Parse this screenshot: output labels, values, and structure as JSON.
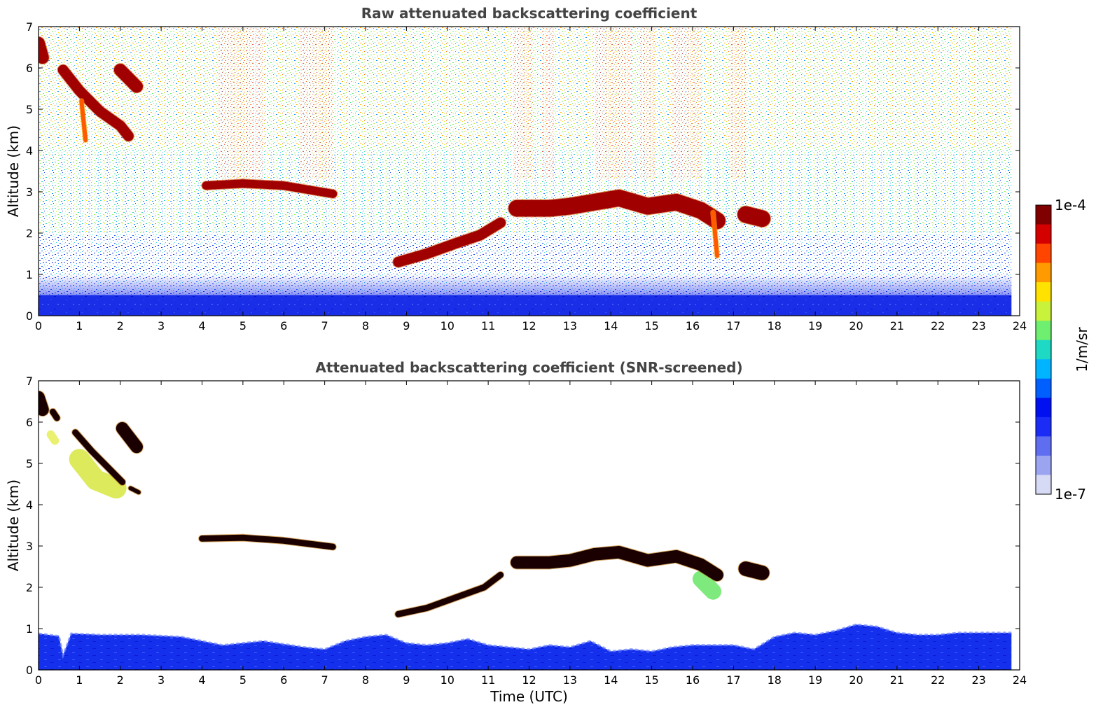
{
  "chart_data": [
    {
      "type": "heatmap",
      "title": "Raw attenuated backscattering coefficient",
      "xlabel": "",
      "ylabel": "Altitude (km)",
      "xlim": [
        0,
        24
      ],
      "ylim": [
        0,
        7
      ],
      "xticks": [
        "0",
        "1",
        "2",
        "3",
        "4",
        "5",
        "6",
        "7",
        "8",
        "9",
        "10",
        "11",
        "12",
        "13",
        "14",
        "15",
        "16",
        "17",
        "18",
        "19",
        "20",
        "21",
        "22",
        "23",
        "24"
      ],
      "yticks": [
        "0",
        "1",
        "2",
        "3",
        "4",
        "5",
        "6",
        "7"
      ],
      "data_end_time": 23.8,
      "grid": false,
      "layers": [
        {
          "name": "boundary layer (dense blue)",
          "from_km": 0,
          "to_km": 0.5
        },
        {
          "name": "lower noise transition",
          "from_km": 0.5,
          "to_km": 2.0
        },
        {
          "name": "mid noise (cyan-green)",
          "from_km": 2.0,
          "to_km": 4.0
        },
        {
          "name": "upper noise (green-yellow)",
          "from_km": 4.0,
          "to_km": 7.0
        }
      ],
      "strong_noise_bands_hours": [
        [
          4.4,
          5.5
        ],
        [
          6.4,
          7.2
        ],
        [
          11.6,
          12.1
        ],
        [
          12.3,
          12.6
        ],
        [
          13.6,
          14.5
        ],
        [
          14.7,
          15.1
        ],
        [
          15.5,
          16.2
        ],
        [
          16.9,
          17.3
        ]
      ],
      "cloud_features": [
        {
          "points": [
            [
              0.6,
              5.95
            ],
            [
              1.0,
              5.45
            ],
            [
              1.5,
              4.95
            ],
            [
              2.0,
              4.6
            ],
            [
              2.2,
              4.35
            ]
          ],
          "thickness_km": 0.25
        },
        {
          "points": [
            [
              0.0,
              6.6
            ],
            [
              0.1,
              6.25
            ]
          ],
          "thickness_km": 0.3
        },
        {
          "points": [
            [
              2.0,
              5.95
            ],
            [
              2.4,
              5.55
            ]
          ],
          "thickness_km": 0.3
        },
        {
          "points": [
            [
              4.1,
              3.15
            ],
            [
              5.0,
              3.2
            ],
            [
              6.0,
              3.15
            ],
            [
              7.2,
              2.95
            ]
          ],
          "thickness_km": 0.2
        },
        {
          "points": [
            [
              8.8,
              1.3
            ],
            [
              9.5,
              1.5
            ],
            [
              10.2,
              1.75
            ],
            [
              10.8,
              1.95
            ],
            [
              11.3,
              2.25
            ]
          ],
          "thickness_km": 0.25
        },
        {
          "points": [
            [
              11.7,
              2.6
            ],
            [
              12.5,
              2.6
            ],
            [
              13.0,
              2.65
            ],
            [
              13.6,
              2.75
            ],
            [
              14.2,
              2.85
            ],
            [
              14.9,
              2.65
            ],
            [
              15.6,
              2.75
            ],
            [
              16.2,
              2.55
            ],
            [
              16.6,
              2.3
            ]
          ],
          "thickness_km": 0.4
        },
        {
          "points": [
            [
              17.3,
              2.45
            ],
            [
              17.7,
              2.35
            ]
          ],
          "thickness_km": 0.4
        },
        {
          "points": [
            [
              1.05,
              5.2
            ],
            [
              1.15,
              4.25
            ]
          ],
          "thickness_km": 0.1
        },
        {
          "points": [
            [
              16.5,
              2.5
            ],
            [
              16.6,
              1.45
            ]
          ],
          "thickness_km": 0.1
        }
      ]
    },
    {
      "type": "heatmap",
      "title": "Attenuated backscattering coefficient (SNR-screened)",
      "xlabel": "Time (UTC)",
      "ylabel": "Altitude (km)",
      "xlim": [
        0,
        24
      ],
      "ylim": [
        0,
        7
      ],
      "xticks": [
        "0",
        "1",
        "2",
        "3",
        "4",
        "5",
        "6",
        "7",
        "8",
        "9",
        "10",
        "11",
        "12",
        "13",
        "14",
        "15",
        "16",
        "17",
        "18",
        "19",
        "20",
        "21",
        "22",
        "23",
        "24"
      ],
      "yticks": [
        "0",
        "1",
        "2",
        "3",
        "4",
        "5",
        "6",
        "7"
      ],
      "data_end_time": 23.8,
      "grid": false,
      "boundary_layer_top_km": [
        [
          0.0,
          0.88
        ],
        [
          0.5,
          0.82
        ],
        [
          0.6,
          0.35
        ],
        [
          0.8,
          0.88
        ],
        [
          1.5,
          0.85
        ],
        [
          2.5,
          0.85
        ],
        [
          3.5,
          0.8
        ],
        [
          4.5,
          0.6
        ],
        [
          5.5,
          0.7
        ],
        [
          6.5,
          0.55
        ],
        [
          7.0,
          0.5
        ],
        [
          7.5,
          0.7
        ],
        [
          8.0,
          0.8
        ],
        [
          8.5,
          0.85
        ],
        [
          9.0,
          0.65
        ],
        [
          9.5,
          0.6
        ],
        [
          10.0,
          0.65
        ],
        [
          10.5,
          0.75
        ],
        [
          11.0,
          0.6
        ],
        [
          11.5,
          0.55
        ],
        [
          12.0,
          0.5
        ],
        [
          12.5,
          0.6
        ],
        [
          13.0,
          0.55
        ],
        [
          13.5,
          0.7
        ],
        [
          14.0,
          0.45
        ],
        [
          14.5,
          0.5
        ],
        [
          15.0,
          0.45
        ],
        [
          15.5,
          0.55
        ],
        [
          16.0,
          0.6
        ],
        [
          16.5,
          0.6
        ],
        [
          17.0,
          0.6
        ],
        [
          17.5,
          0.5
        ],
        [
          18.0,
          0.8
        ],
        [
          18.5,
          0.9
        ],
        [
          19.0,
          0.85
        ],
        [
          19.5,
          0.95
        ],
        [
          20.0,
          1.1
        ],
        [
          20.5,
          1.05
        ],
        [
          21.0,
          0.9
        ],
        [
          21.5,
          0.85
        ],
        [
          22.0,
          0.85
        ],
        [
          22.5,
          0.9
        ],
        [
          23.0,
          0.9
        ],
        [
          23.8,
          0.9
        ]
      ],
      "cloud_features": [
        {
          "points": [
            [
              0.9,
              5.75
            ],
            [
              1.3,
              5.3
            ],
            [
              1.7,
              4.9
            ],
            [
              2.05,
              4.55
            ]
          ],
          "thickness_km": 0.15
        },
        {
          "points": [
            [
              0.0,
              6.6
            ],
            [
              0.1,
              6.3
            ]
          ],
          "thickness_km": 0.3
        },
        {
          "points": [
            [
              0.35,
              6.25
            ],
            [
              0.45,
              6.1
            ]
          ],
          "thickness_km": 0.15
        },
        {
          "points": [
            [
              2.05,
              5.85
            ],
            [
              2.4,
              5.4
            ]
          ],
          "thickness_km": 0.3
        },
        {
          "points": [
            [
              2.25,
              4.4
            ],
            [
              2.45,
              4.3
            ]
          ],
          "thickness_km": 0.1
        },
        {
          "points": [
            [
              4.0,
              3.18
            ],
            [
              5.0,
              3.2
            ],
            [
              6.0,
              3.13
            ],
            [
              7.2,
              2.98
            ]
          ],
          "thickness_km": 0.15
        },
        {
          "points": [
            [
              8.8,
              1.35
            ],
            [
              9.5,
              1.5
            ],
            [
              10.2,
              1.75
            ],
            [
              10.9,
              2.0
            ],
            [
              11.3,
              2.3
            ]
          ],
          "thickness_km": 0.15
        },
        {
          "points": [
            [
              11.7,
              2.6
            ],
            [
              12.5,
              2.6
            ],
            [
              13.0,
              2.65
            ],
            [
              13.6,
              2.8
            ],
            [
              14.2,
              2.85
            ],
            [
              14.9,
              2.65
            ],
            [
              15.6,
              2.75
            ],
            [
              16.2,
              2.55
            ],
            [
              16.6,
              2.3
            ]
          ],
          "thickness_km": 0.3
        },
        {
          "points": [
            [
              17.3,
              2.45
            ],
            [
              17.7,
              2.35
            ]
          ],
          "thickness_km": 0.35
        }
      ],
      "fill_features": [
        {
          "name": "yellow-green fill",
          "points": [
            [
              1.0,
              5.1
            ],
            [
              1.4,
              4.6
            ],
            [
              1.9,
              4.4
            ]
          ],
          "thickness_km": 0.5
        },
        {
          "name": "yellow patch",
          "points": [
            [
              0.3,
              5.7
            ],
            [
              0.4,
              5.55
            ]
          ],
          "thickness_km": 0.2
        },
        {
          "name": "green patch",
          "points": [
            [
              16.2,
              2.2
            ],
            [
              16.5,
              1.9
            ]
          ],
          "thickness_km": 0.4
        }
      ]
    }
  ],
  "colorbar": {
    "label": "1/m/sr",
    "max_label": "1e-4",
    "min_label": "1e-7",
    "colors": [
      "#800000",
      "#d40000",
      "#ff4500",
      "#ff9a00",
      "#ffe200",
      "#c9f23a",
      "#6fef6f",
      "#1ed9c4",
      "#00b4ff",
      "#0060ff",
      "#0010f0",
      "#1a2cf5",
      "#5f6df0",
      "#9ba4f0",
      "#d6daf5"
    ]
  }
}
